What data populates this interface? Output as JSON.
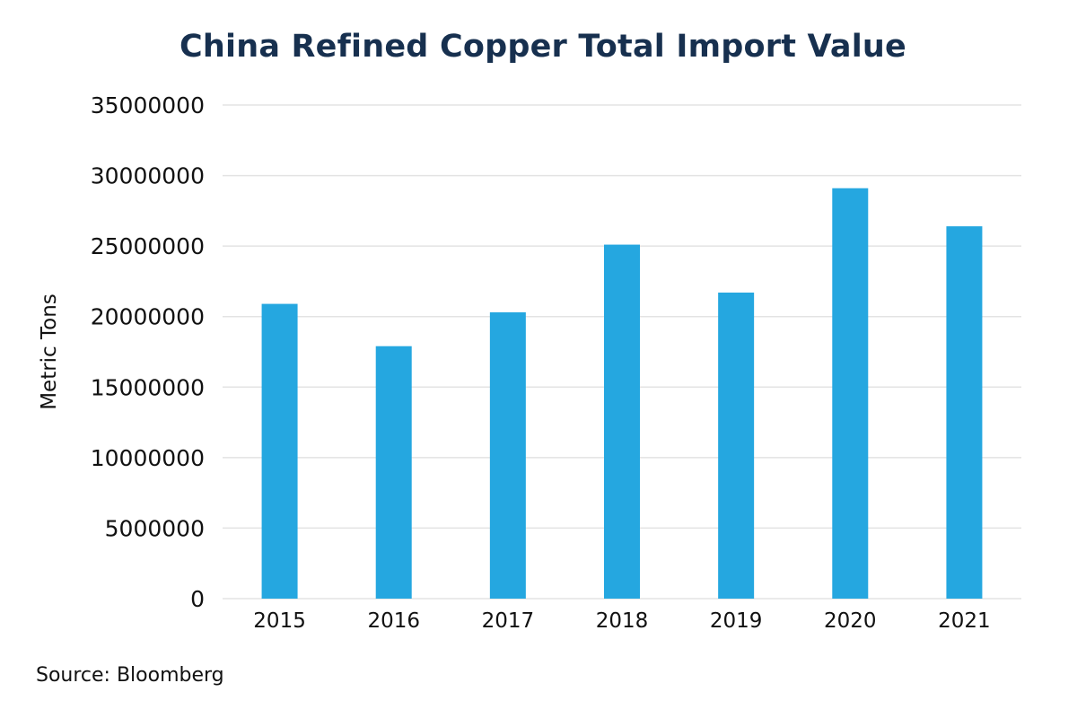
{
  "chart_data": {
    "type": "bar",
    "title": "China Refined Copper Total Import Value",
    "xlabel": "",
    "ylabel": "Metric Tons",
    "categories": [
      "2015",
      "2016",
      "2017",
      "2018",
      "2019",
      "2020",
      "2021"
    ],
    "values": [
      20900000,
      17900000,
      20300000,
      25100000,
      21700000,
      29100000,
      26400000
    ],
    "ylim": [
      0,
      35000000
    ],
    "yticks": [
      0,
      5000000,
      10000000,
      15000000,
      20000000,
      25000000,
      30000000,
      35000000
    ],
    "ytick_labels": [
      "0",
      "5000000",
      "10000000",
      "15000000",
      "20000000",
      "25000000",
      "30000000",
      "35000000"
    ],
    "grid": true,
    "bar_color": "#25a7e0",
    "source": "Source: Bloomberg"
  }
}
